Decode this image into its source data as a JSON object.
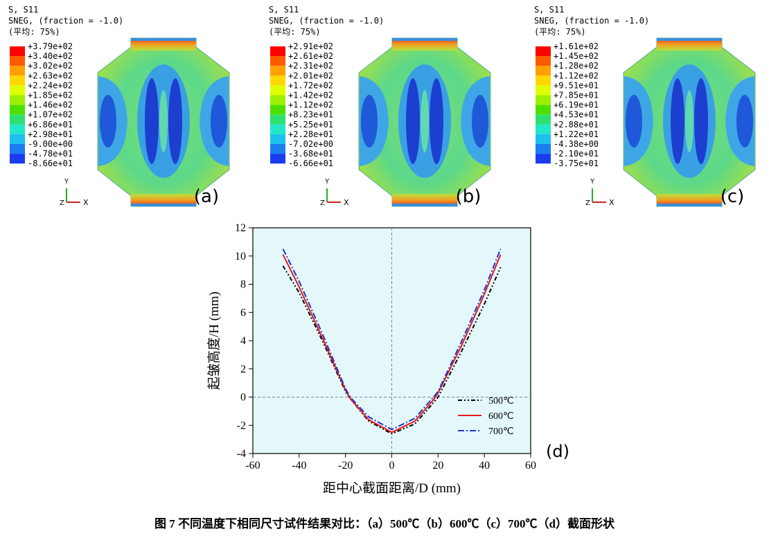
{
  "panels": [
    {
      "header": [
        "S, S11",
        "SNEG, (fraction = -1.0)",
        "(平均: 75%)"
      ],
      "legend": [
        "+3.79e+02",
        "+3.40e+02",
        "+3.02e+02",
        "+2.63e+02",
        "+2.24e+02",
        "+1.85e+02",
        "+1.46e+02",
        "+1.07e+02",
        "+6.86e+01",
        "+2.98e+01",
        "-9.00e+00",
        "-4.78e+01",
        "-8.66e+01"
      ],
      "triad": [
        "Y",
        "Z",
        "X"
      ],
      "label": "(a)"
    },
    {
      "header": [
        "S, S11",
        "SNEG, (fraction = -1.0)",
        "(平均: 75%)"
      ],
      "legend": [
        "+2.91e+02",
        "+2.61e+02",
        "+2.31e+02",
        "+2.01e+02",
        "+1.72e+02",
        "+1.42e+02",
        "+1.12e+02",
        "+8.23e+01",
        "+5.25e+01",
        "+2.28e+01",
        "-7.02e+00",
        "-3.68e+01",
        "-6.66e+01"
      ],
      "triad": [
        "Y",
        "Z",
        "X"
      ],
      "label": "(b)"
    },
    {
      "header": [
        "S, S11",
        "SNEG, (fraction = -1.0)",
        "(平均: 75%)"
      ],
      "legend": [
        "+1.61e+02",
        "+1.45e+02",
        "+1.28e+02",
        "+1.12e+02",
        "+9.51e+01",
        "+7.85e+01",
        "+6.19e+01",
        "+4.53e+01",
        "+2.88e+01",
        "+1.22e+01",
        "-4.38e+00",
        "-2.10e+01",
        "-3.75e+01"
      ],
      "triad": [
        "Y",
        "Z",
        "X"
      ],
      "label": "(c)"
    }
  ],
  "chart_data": {
    "type": "line",
    "label": "(d)",
    "xlabel": "距中心截面距离/D (mm)",
    "ylabel": "起皱高度/H (mm)",
    "x": [
      -47,
      -40,
      -30,
      -20,
      -18,
      -10,
      0,
      10,
      18,
      20,
      30,
      40,
      47
    ],
    "series": [
      {
        "name": "500℃",
        "color": "#000000",
        "dash": "6 3 2 3 2 3",
        "values": [
          9.3,
          7.4,
          4.0,
          0.4,
          -0.1,
          -1.7,
          -2.6,
          -1.9,
          -0.4,
          0.0,
          3.2,
          6.6,
          9.2
        ]
      },
      {
        "name": "600℃",
        "color": "#e8191c",
        "dash": "none",
        "values": [
          10.1,
          7.8,
          4.2,
          0.5,
          -0.1,
          -1.6,
          -2.5,
          -1.7,
          -0.2,
          0.3,
          3.6,
          7.3,
          10.1
        ]
      },
      {
        "name": "700℃",
        "color": "#1f2fd0",
        "dash": "9 3 2 3",
        "values": [
          10.5,
          8.2,
          4.5,
          0.6,
          0.0,
          -1.4,
          -2.3,
          -1.5,
          0.0,
          0.4,
          3.9,
          7.6,
          10.5
        ]
      }
    ],
    "xlim": [
      -60,
      60
    ],
    "xticks": [
      -60,
      -40,
      -20,
      0,
      20,
      40,
      60
    ],
    "ylim": [
      -4,
      12
    ],
    "yticks": [
      -4,
      -2,
      0,
      2,
      4,
      6,
      8,
      10,
      12
    ],
    "hlines": [
      0
    ],
    "vlines": [
      0
    ],
    "legend": "lower right"
  },
  "caption": "图 7 不同温度下相同尺寸试件结果对比：（a）500℃（b）600℃（c）700℃（d）截面形状"
}
